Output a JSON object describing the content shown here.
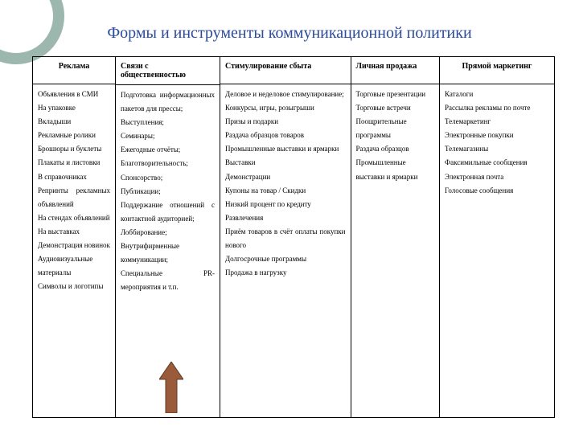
{
  "title": "Формы и инструменты коммуникационной политики",
  "decor": {
    "ring_color": "#4b7d6b"
  },
  "arrow": {
    "fill": "#9a5b3a",
    "stroke": "#5c3b27"
  },
  "table": {
    "type": "table",
    "column_widths_pct": [
      16,
      20,
      25,
      17,
      22
    ],
    "columns": [
      {
        "header": "Реклама",
        "align": "center",
        "items": [
          "Объявления в СМИ",
          "На упаковке",
          "Вкладыши",
          "Рекламные ролики",
          "Брошюры и буклеты",
          "Плакаты и листовки",
          "В справочниках",
          "Репринты рекламных объявлений",
          "На стендах объявлений",
          "На выставках",
          "Демонстрация новинок",
          "Аудиовизуальные материалы",
          "Символы и логотипы"
        ]
      },
      {
        "header": "Связи с общественностью",
        "align": "left",
        "items": [
          "Подготовка информационных пакетов для прессы;",
          "Выступления;",
          "Семинары;",
          "Ежегодные отчёты;",
          "Благотворительность;",
          "Спонсорство;",
          "Публикации;",
          "Поддержание отношений с контактной аудиторией;",
          "Лоббирование;",
          "Внутрифирменные коммуникации;",
          "Специальные PR-мероприятия и т.п."
        ]
      },
      {
        "header": "Стимулирование сбыта",
        "align": "left",
        "items": [
          "Деловое и неделовое стимулирование;",
          "Конкурсы, игры, розыгрыши",
          "Призы и подарки",
          "Раздача образцов товаров",
          "Промышленные выставки и ярмарки",
          "Выставки",
          "Демонстрации",
          "Купоны на товар / Скидки",
          "Низкий процент по кредиту",
          "Развлечения",
          "Приём товаров в счёт оплаты покупки нового",
          "Долгосрочные программы",
          "Продажа в нагрузку"
        ]
      },
      {
        "header": "Личная продажа",
        "align": "left",
        "items": [
          "Торговые презентации",
          "Торговые встречи",
          "Поощрительные программы",
          "Раздача образцов",
          "Промышленные выставки и ярмарки"
        ]
      },
      {
        "header": "Прямой маркетинг",
        "align": "center",
        "items": [
          "Каталоги",
          "Рассылка рекламы по почте",
          "Телемаркетинг",
          "Электронные покупки",
          "Телемагазины",
          "Факсимильные сообщения",
          "Электронная почта",
          "Голосовые сообщения"
        ]
      }
    ]
  }
}
